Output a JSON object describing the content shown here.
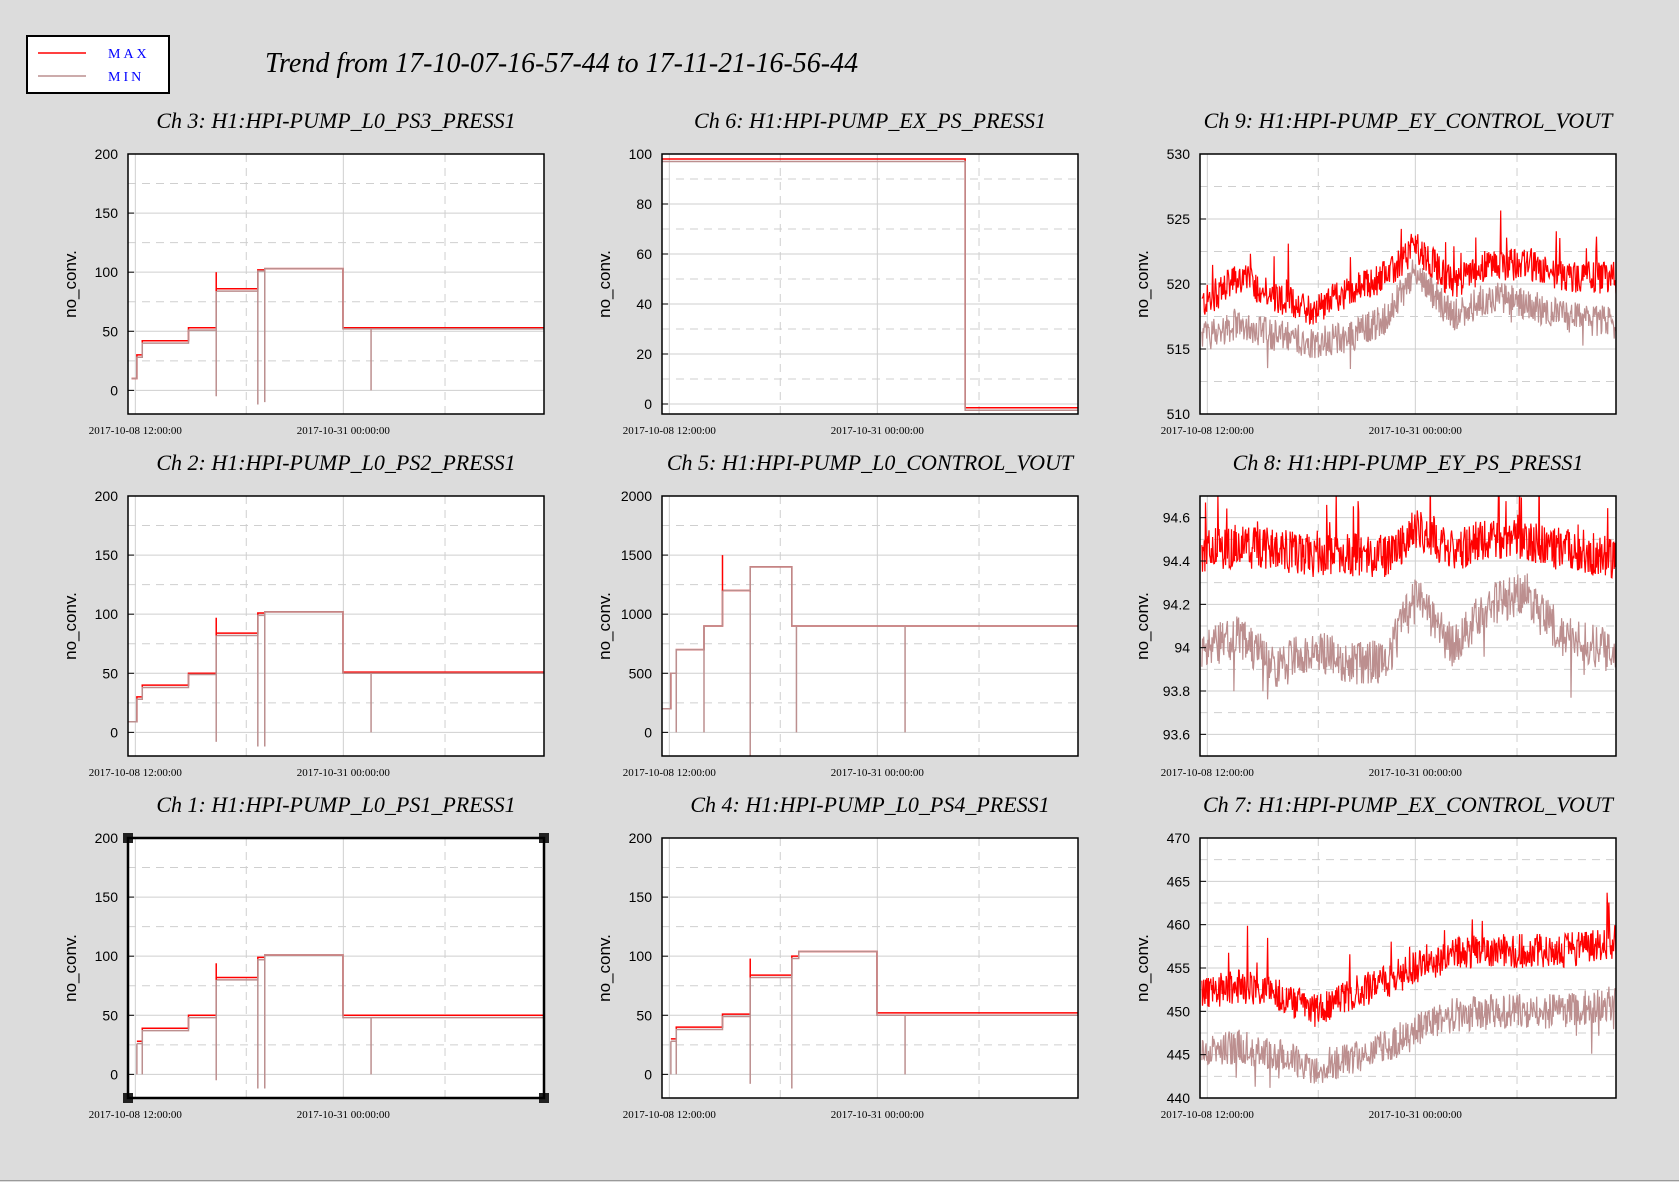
{
  "page": {
    "title": "Trend from 17-10-07-16-57-44 to 17-11-21-16-56-44",
    "background": "#dcdcdc",
    "max_color": "#ff0000",
    "min_color": "#bc8f8f"
  },
  "legend": {
    "items": [
      {
        "label": "MAX",
        "color": "#ff0000"
      },
      {
        "label": "MIN",
        "color": "#bc8f8f"
      }
    ]
  },
  "x_axis": {
    "start": "2017-10-07 16:57:44",
    "end": "2017-11-21 16:56:44",
    "tick_labels": [
      "2017-10-08 12:00:00",
      "2017-10-31 00:00:00"
    ],
    "minor_gridlines": [
      "2017-10-20 12:00:00",
      "2017-11-11 00:00:00"
    ]
  },
  "chart_data": [
    {
      "type": "line",
      "title": "Ch 3: H1:HPI-PUMP_L0_PS3_PRESS1",
      "ylabel": "no_conv.",
      "ylim": [
        -20,
        200
      ],
      "yticks": [
        0,
        50,
        100,
        150,
        200
      ],
      "grid": true,
      "mode": "step",
      "segments": [
        {
          "start": "2017-10-08 02:00",
          "end": "2017-10-08 16:00",
          "min": 10,
          "max": 10,
          "spike": 0
        },
        {
          "start": "2017-10-08 16:00",
          "end": "2017-10-09 06:00",
          "min": 28,
          "max": 30,
          "spike": 0
        },
        {
          "start": "2017-10-09 06:00",
          "end": "2017-10-14 06:00",
          "min": 40,
          "max": 42,
          "spike": 0
        },
        {
          "start": "2017-10-14 06:00",
          "end": "2017-10-17 06:00",
          "min": 51,
          "max": 53,
          "spike": 0
        },
        {
          "start": "2017-10-17 06:00",
          "end": "2017-10-21 18:00",
          "min": 84,
          "max": 86,
          "spike": -5
        },
        {
          "start": "2017-10-21 18:00",
          "end": "2017-10-22 12:00",
          "min": 101,
          "max": 102,
          "spike": -12
        },
        {
          "start": "2017-10-22 12:00",
          "end": "2017-10-30 23:00",
          "min": 103,
          "max": 103,
          "spike": -10
        },
        {
          "start": "2017-10-30 23:00",
          "end": "2017-11-21 16:56",
          "min": 52,
          "max": 53,
          "spike": 0
        }
      ],
      "spikes": [
        {
          "date": "2017-10-17 06:00",
          "value": 100
        },
        {
          "date": "2017-11-03 00:00",
          "value": 0
        }
      ]
    },
    {
      "type": "line",
      "title": "Ch 6: H1:HPI-PUMP_EX_PS_PRESS1",
      "ylabel": "no_conv.",
      "ylim": [
        -4,
        100
      ],
      "yticks": [
        0,
        20,
        40,
        60,
        80,
        100
      ],
      "grid": true,
      "mode": "step",
      "segments": [
        {
          "start": "2017-10-07 16:57",
          "end": "2017-11-09 12:00",
          "min": 97,
          "max": 98,
          "spike": 0
        },
        {
          "start": "2017-11-09 12:00",
          "end": "2017-11-21 16:56",
          "min": -2.5,
          "max": -1.5,
          "spike": 0
        }
      ],
      "spikes": []
    },
    {
      "type": "line",
      "title": "Ch 9: H1:HPI-PUMP_EY_CONTROL_VOUT",
      "ylabel": "no_conv.",
      "ylim": [
        510,
        530
      ],
      "yticks": [
        510,
        515,
        520,
        525,
        530
      ],
      "grid": true,
      "mode": "noise",
      "envelope": {
        "dates": [
          "2017-10-08 00:00",
          "2017-10-12 00:00",
          "2017-10-16 00:00",
          "2017-10-20 00:00",
          "2017-10-24 00:00",
          "2017-10-28 00:00",
          "2017-10-31 00:00",
          "2017-11-04 00:00",
          "2017-11-08 00:00",
          "2017-11-12 00:00",
          "2017-11-16 00:00",
          "2017-11-21 12:00"
        ],
        "max": [
          518.5,
          520.5,
          519,
          518,
          519.5,
          520.5,
          523,
          520,
          521.5,
          521.5,
          520.5,
          520.5
        ],
        "min": [
          516,
          517,
          516,
          515.5,
          516,
          517.5,
          521,
          517.5,
          519,
          518.5,
          517.5,
          517
        ],
        "spread": 2.5
      }
    },
    {
      "type": "line",
      "title": "Ch 2: H1:HPI-PUMP_L0_PS2_PRESS1",
      "ylabel": "no_conv.",
      "ylim": [
        -20,
        200
      ],
      "yticks": [
        0,
        50,
        100,
        150,
        200
      ],
      "grid": true,
      "mode": "step",
      "segments": [
        {
          "start": "2017-10-07 16:57",
          "end": "2017-10-08 16:00",
          "min": 9,
          "max": 9,
          "spike": 0
        },
        {
          "start": "2017-10-08 16:00",
          "end": "2017-10-09 06:00",
          "min": 28,
          "max": 30,
          "spike": 0
        },
        {
          "start": "2017-10-09 06:00",
          "end": "2017-10-14 06:00",
          "min": 38,
          "max": 40,
          "spike": 0
        },
        {
          "start": "2017-10-14 06:00",
          "end": "2017-10-17 06:00",
          "min": 49,
          "max": 50,
          "spike": 0
        },
        {
          "start": "2017-10-17 06:00",
          "end": "2017-10-21 18:00",
          "min": 82,
          "max": 84,
          "spike": -8
        },
        {
          "start": "2017-10-21 18:00",
          "end": "2017-10-22 12:00",
          "min": 99,
          "max": 101,
          "spike": -12
        },
        {
          "start": "2017-10-22 12:00",
          "end": "2017-10-30 23:00",
          "min": 102,
          "max": 102,
          "spike": -12
        },
        {
          "start": "2017-10-30 23:00",
          "end": "2017-11-21 16:56",
          "min": 50,
          "max": 51,
          "spike": 0
        }
      ],
      "spikes": [
        {
          "date": "2017-10-17 06:00",
          "value": 97
        },
        {
          "date": "2017-11-03 00:00",
          "value": 0
        }
      ]
    },
    {
      "type": "line",
      "title": "Ch 5: H1:HPI-PUMP_L0_CONTROL_VOUT",
      "ylabel": "no_conv.",
      "ylim": [
        -200,
        2000
      ],
      "yticks": [
        0,
        500,
        1000,
        1500,
        2000
      ],
      "grid": true,
      "mode": "step",
      "segments": [
        {
          "start": "2017-10-07 16:57",
          "end": "2017-10-08 16:00",
          "min": 200,
          "max": 200,
          "spike": 0
        },
        {
          "start": "2017-10-08 16:00",
          "end": "2017-10-09 06:00",
          "min": 500,
          "max": 500,
          "spike": 0
        },
        {
          "start": "2017-10-09 06:00",
          "end": "2017-10-12 06:00",
          "min": 700,
          "max": 700,
          "spike": 0
        },
        {
          "start": "2017-10-12 06:00",
          "end": "2017-10-14 06:00",
          "min": 900,
          "max": 900,
          "spike": 0
        },
        {
          "start": "2017-10-14 06:00",
          "end": "2017-10-17 06:00",
          "min": 1200,
          "max": 1200,
          "spike": 0
        },
        {
          "start": "2017-10-17 06:00",
          "end": "2017-10-21 18:00",
          "min": 1400,
          "max": 1400,
          "spike": -200
        },
        {
          "start": "2017-10-21 18:00",
          "end": "2017-10-22 12:00",
          "min": 900,
          "max": 900,
          "spike": 0
        },
        {
          "start": "2017-10-22 12:00",
          "end": "2017-11-21 16:56",
          "min": 900,
          "max": 900,
          "spike": 0
        }
      ],
      "spikes": [
        {
          "date": "2017-10-14 06:00",
          "value": 1500
        },
        {
          "date": "2017-10-09 06:00",
          "value": 0
        },
        {
          "date": "2017-10-12 06:00",
          "value": 0
        },
        {
          "date": "2017-10-22 06:00",
          "value": 0
        },
        {
          "date": "2017-11-03 00:00",
          "value": 0
        }
      ]
    },
    {
      "type": "line",
      "title": "Ch 8: H1:HPI-PUMP_EY_PS_PRESS1",
      "ylabel": "no_conv.",
      "ylim": [
        93.5,
        94.7
      ],
      "yticks": [
        93.6,
        93.8,
        94,
        94.2,
        94.4,
        94.6
      ],
      "grid": true,
      "mode": "noise",
      "envelope": {
        "dates": [
          "2017-10-08 00:00",
          "2017-10-12 00:00",
          "2017-10-16 00:00",
          "2017-10-20 00:00",
          "2017-10-24 00:00",
          "2017-10-28 00:00",
          "2017-10-31 00:00",
          "2017-11-04 00:00",
          "2017-11-08 00:00",
          "2017-11-12 00:00",
          "2017-11-16 00:00",
          "2017-11-21 12:00"
        ],
        "max": [
          94.45,
          94.47,
          94.45,
          94.42,
          94.43,
          94.42,
          94.55,
          94.45,
          94.5,
          94.5,
          94.45,
          94.42
        ],
        "min": [
          94.0,
          94.05,
          93.9,
          94.0,
          93.92,
          93.95,
          94.25,
          94.0,
          94.2,
          94.25,
          94.05,
          93.98
        ],
        "spread": 0.2
      }
    },
    {
      "type": "line",
      "title": "Ch 1: H1:HPI-PUMP_L0_PS1_PRESS1",
      "ylabel": "no_conv.",
      "ylim": [
        -20,
        200
      ],
      "yticks": [
        0,
        50,
        100,
        150,
        200
      ],
      "grid": true,
      "mode": "step",
      "segments": [
        {
          "start": "2017-10-08 16:00",
          "end": "2017-10-09 06:00",
          "min": 26,
          "max": 28,
          "spike": 0
        },
        {
          "start": "2017-10-09 06:00",
          "end": "2017-10-14 06:00",
          "min": 37,
          "max": 39,
          "spike": 0
        },
        {
          "start": "2017-10-14 06:00",
          "end": "2017-10-17 06:00",
          "min": 48,
          "max": 50,
          "spike": 0
        },
        {
          "start": "2017-10-17 06:00",
          "end": "2017-10-21 18:00",
          "min": 80,
          "max": 82,
          "spike": -5
        },
        {
          "start": "2017-10-21 18:00",
          "end": "2017-10-22 12:00",
          "min": 97,
          "max": 99,
          "spike": -12
        },
        {
          "start": "2017-10-22 12:00",
          "end": "2017-10-30 23:00",
          "min": 101,
          "max": 101,
          "spike": -12
        },
        {
          "start": "2017-10-30 23:00",
          "end": "2017-11-21 16:56",
          "min": 48,
          "max": 50,
          "spike": 0
        }
      ],
      "spikes": [
        {
          "date": "2017-10-17 06:00",
          "value": 94
        },
        {
          "date": "2017-10-08 16:00",
          "value": 0
        },
        {
          "date": "2017-10-09 06:00",
          "value": 0
        },
        {
          "date": "2017-11-03 00:00",
          "value": 0
        }
      ]
    },
    {
      "type": "line",
      "title": "Ch 4: H1:HPI-PUMP_L0_PS4_PRESS1",
      "ylabel": "no_conv.",
      "ylim": [
        -20,
        200
      ],
      "yticks": [
        0,
        50,
        100,
        150,
        200
      ],
      "grid": true,
      "mode": "step",
      "segments": [
        {
          "start": "2017-10-08 16:00",
          "end": "2017-10-09 06:00",
          "min": 28,
          "max": 30,
          "spike": 0
        },
        {
          "start": "2017-10-09 06:00",
          "end": "2017-10-14 06:00",
          "min": 38,
          "max": 40,
          "spike": 0
        },
        {
          "start": "2017-10-14 06:00",
          "end": "2017-10-17 06:00",
          "min": 49,
          "max": 51,
          "spike": 0
        },
        {
          "start": "2017-10-17 06:00",
          "end": "2017-10-21 18:00",
          "min": 82,
          "max": 84,
          "spike": -8
        },
        {
          "start": "2017-10-21 18:00",
          "end": "2017-10-22 12:00",
          "min": 98,
          "max": 100,
          "spike": -12
        },
        {
          "start": "2017-10-22 12:00",
          "end": "2017-10-30 23:00",
          "min": 104,
          "max": 104,
          "spike": 0
        },
        {
          "start": "2017-10-30 23:00",
          "end": "2017-11-21 16:56",
          "min": 50,
          "max": 52,
          "spike": 0
        }
      ],
      "spikes": [
        {
          "date": "2017-10-17 06:00",
          "value": 98
        },
        {
          "date": "2017-10-08 16:00",
          "value": 0
        },
        {
          "date": "2017-10-09 06:00",
          "value": 0
        },
        {
          "date": "2017-11-03 00:00",
          "value": 0
        }
      ]
    },
    {
      "type": "line",
      "title": "Ch 7: H1:HPI-PUMP_EX_CONTROL_VOUT",
      "ylabel": "no_conv.",
      "ylim": [
        440,
        470
      ],
      "yticks": [
        440,
        445,
        450,
        455,
        460,
        465,
        470
      ],
      "grid": true,
      "mode": "noise",
      "envelope": {
        "dates": [
          "2017-10-08 00:00",
          "2017-10-12 00:00",
          "2017-10-16 00:00",
          "2017-10-20 00:00",
          "2017-10-24 00:00",
          "2017-10-28 00:00",
          "2017-10-31 00:00",
          "2017-11-04 00:00",
          "2017-11-08 00:00",
          "2017-11-12 00:00",
          "2017-11-16 00:00",
          "2017-11-21 12:00"
        ],
        "max": [
          452,
          453,
          452,
          450,
          452,
          453.5,
          455,
          456.5,
          457,
          457,
          457,
          458
        ],
        "min": [
          445,
          446,
          445,
          443.5,
          444.5,
          446,
          448,
          449.5,
          450,
          450,
          450,
          451
        ],
        "spread": 4
      }
    }
  ]
}
